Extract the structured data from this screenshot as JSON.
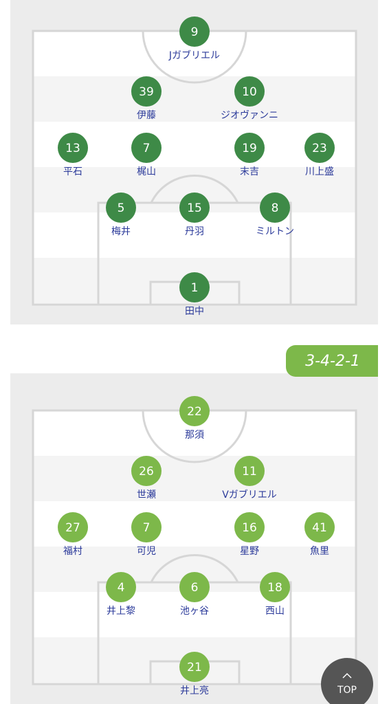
{
  "teams": [
    {
      "players": [
        {
          "number": "9",
          "name": "Jガブリエル"
        },
        {
          "number": "39",
          "name": "伊藤"
        },
        {
          "number": "10",
          "name": "ジオヴァンニ"
        },
        {
          "number": "13",
          "name": "平石"
        },
        {
          "number": "7",
          "name": "梶山"
        },
        {
          "number": "19",
          "name": "末吉"
        },
        {
          "number": "23",
          "name": "川上盛"
        },
        {
          "number": "5",
          "name": "梅井"
        },
        {
          "number": "15",
          "name": "丹羽"
        },
        {
          "number": "8",
          "name": "ミルトン"
        },
        {
          "number": "1",
          "name": "田中"
        }
      ]
    },
    {
      "formation": "3-4-2-1",
      "players": [
        {
          "number": "22",
          "name": "那須"
        },
        {
          "number": "26",
          "name": "世瀬"
        },
        {
          "number": "11",
          "name": "Vガブリエル"
        },
        {
          "number": "27",
          "name": "福村"
        },
        {
          "number": "7",
          "name": "可児"
        },
        {
          "number": "16",
          "name": "星野"
        },
        {
          "number": "41",
          "name": "魚里"
        },
        {
          "number": "4",
          "name": "井上黎"
        },
        {
          "number": "6",
          "name": "池ヶ谷"
        },
        {
          "number": "18",
          "name": "西山"
        },
        {
          "number": "21",
          "name": "井上亮"
        }
      ]
    }
  ],
  "top_button": "TOP"
}
